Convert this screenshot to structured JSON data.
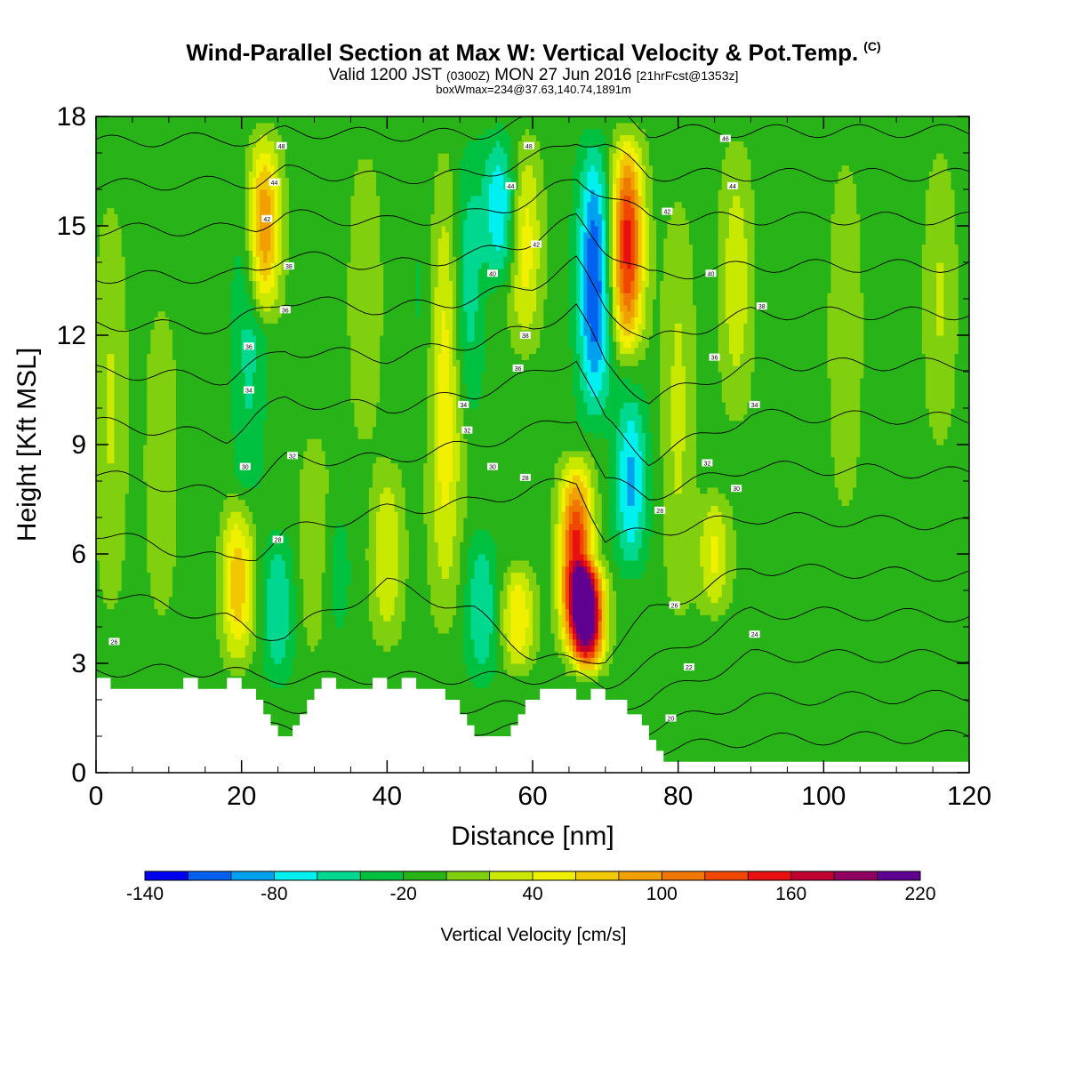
{
  "header": {
    "title": "Wind-Parallel Section at Max W: Vertical Velocity & Pot.Temp.",
    "title_mark": "(C)",
    "valid_prefix": "Valid 1200 JST",
    "valid_utc": "(0300Z)",
    "valid_date": "MON 27 Jun 2016",
    "forecast": "[21hrFcst@1353z]",
    "box_info": "boxWmax=234@37.63,140.74,1891m"
  },
  "chart_data": {
    "type": "heatmap",
    "xlabel": "Distance [nm]",
    "ylabel": "Height [Kft MSL]",
    "xlim": [
      0,
      120
    ],
    "ylim": [
      0,
      18
    ],
    "x_ticks": [
      "0",
      "20",
      "40",
      "60",
      "80",
      "100",
      "120"
    ],
    "y_ticks": [
      "0",
      "3",
      "6",
      "9",
      "12",
      "15",
      "18"
    ],
    "colorbar": {
      "label": "Vertical Velocity [cm/s]",
      "range": [
        -140,
        220
      ],
      "step": 20,
      "tick_labels": [
        "-140",
        "-80",
        "-20",
        "40",
        "100",
        "160",
        "220"
      ],
      "tick_values": [
        -140,
        -80,
        -20,
        40,
        100,
        160,
        220
      ],
      "colors": [
        "#0000f0",
        "#0060f0",
        "#00a0f0",
        "#00f0f0",
        "#00d890",
        "#00c040",
        "#28b418",
        "#80d010",
        "#c8e800",
        "#f0f000",
        "#f0c800",
        "#f0a000",
        "#f07800",
        "#f04800",
        "#e81010",
        "#c00030",
        "#900060",
        "#600090"
      ]
    },
    "w_field": {
      "background": -10,
      "features": [
        {
          "x": 2,
          "y0": 3,
          "y1": 17,
          "value": 22
        },
        {
          "x": 9,
          "y0": 3,
          "y1": 14,
          "value": 18
        },
        {
          "x": 15,
          "y0": 2.5,
          "y1": 18,
          "value": -20
        },
        {
          "x": 19.5,
          "y0": 2.5,
          "y1": 8,
          "value": 75
        },
        {
          "x": 21,
          "y0": 6,
          "y1": 18,
          "value": -45
        },
        {
          "x": 23,
          "y0": 12,
          "y1": 18,
          "value": 105
        },
        {
          "x": 25,
          "y0": 2,
          "y1": 7,
          "value": -60
        },
        {
          "x": 30,
          "y0": 2.5,
          "y1": 10,
          "value": 20
        },
        {
          "x": 33,
          "y0": 3,
          "y1": 8,
          "value": -30
        },
        {
          "x": 37,
          "y0": 8,
          "y1": 18,
          "value": 20
        },
        {
          "x": 40,
          "y0": 3,
          "y1": 9,
          "value": 40
        },
        {
          "x": 45,
          "y0": 8,
          "y1": 18,
          "value": -25
        },
        {
          "x": 48,
          "y0": 3,
          "y1": 18,
          "value": 55
        },
        {
          "x": 51,
          "y0": 9,
          "y1": 18,
          "value": -55
        },
        {
          "x": 53,
          "y0": 2,
          "y1": 7,
          "value": -60
        },
        {
          "x": 55.5,
          "y0": 13,
          "y1": 18,
          "value": -80
        },
        {
          "x": 58,
          "y0": 2.5,
          "y1": 6,
          "value": 60
        },
        {
          "x": 59,
          "y0": 11,
          "y1": 18,
          "value": 50
        },
        {
          "x": 66,
          "y0": 3,
          "y1": 9,
          "value": 150
        },
        {
          "x": 67.5,
          "y0": 2.5,
          "y1": 6,
          "value": 215
        },
        {
          "x": 68.5,
          "y0": 9,
          "y1": 18,
          "value": -120
        },
        {
          "x": 73,
          "y0": 11,
          "y1": 18,
          "value": 150
        },
        {
          "x": 73.5,
          "y0": 5,
          "y1": 11,
          "value": -85
        },
        {
          "x": 80,
          "y0": 3,
          "y1": 17,
          "value": 25
        },
        {
          "x": 85,
          "y0": 4,
          "y1": 8,
          "value": 45
        },
        {
          "x": 88,
          "y0": 9,
          "y1": 18,
          "value": 35
        },
        {
          "x": 96,
          "y0": 3,
          "y1": 14,
          "value": -20
        },
        {
          "x": 103,
          "y0": 6,
          "y1": 18,
          "value": 20
        },
        {
          "x": 110,
          "y0": 3,
          "y1": 12,
          "value": -15
        },
        {
          "x": 116,
          "y0": 8,
          "y1": 18,
          "value": 22
        }
      ]
    },
    "terrain_kft": [
      [
        0,
        2.6
      ],
      [
        2,
        2.6
      ],
      [
        2,
        2.3
      ],
      [
        12,
        2.3
      ],
      [
        12,
        2.6
      ],
      [
        14,
        2.6
      ],
      [
        14,
        2.3
      ],
      [
        18,
        2.3
      ],
      [
        18,
        2.6
      ],
      [
        20,
        2.6
      ],
      [
        20,
        2.3
      ],
      [
        22,
        2.3
      ],
      [
        22,
        2
      ],
      [
        23,
        2
      ],
      [
        23,
        1.6
      ],
      [
        24,
        1.6
      ],
      [
        24,
        1.3
      ],
      [
        25,
        1.3
      ],
      [
        25,
        1
      ],
      [
        27,
        1
      ],
      [
        27,
        1.3
      ],
      [
        28,
        1.3
      ],
      [
        28,
        1.6
      ],
      [
        29,
        1.6
      ],
      [
        29,
        2
      ],
      [
        30,
        2
      ],
      [
        30,
        2.3
      ],
      [
        31,
        2.3
      ],
      [
        31,
        2.6
      ],
      [
        33,
        2.6
      ],
      [
        33,
        2.3
      ],
      [
        38,
        2.3
      ],
      [
        38,
        2.6
      ],
      [
        40,
        2.6
      ],
      [
        40,
        2.3
      ],
      [
        42,
        2.3
      ],
      [
        42,
        2.6
      ],
      [
        44,
        2.6
      ],
      [
        44,
        2.3
      ],
      [
        48,
        2.3
      ],
      [
        48,
        2
      ],
      [
        50,
        2
      ],
      [
        50,
        1.6
      ],
      [
        51,
        1.6
      ],
      [
        51,
        1.3
      ],
      [
        52,
        1.3
      ],
      [
        52,
        1
      ],
      [
        57,
        1
      ],
      [
        57,
        1.3
      ],
      [
        58,
        1.3
      ],
      [
        58,
        1.6
      ],
      [
        59,
        1.6
      ],
      [
        59,
        2
      ],
      [
        61,
        2
      ],
      [
        61,
        2.3
      ],
      [
        66,
        2.3
      ],
      [
        66,
        2
      ],
      [
        68,
        2
      ],
      [
        68,
        2.3
      ],
      [
        70,
        2.3
      ],
      [
        70,
        2
      ],
      [
        73,
        2
      ],
      [
        73,
        1.6
      ],
      [
        75,
        1.6
      ],
      [
        75,
        1.3
      ],
      [
        76,
        1.3
      ],
      [
        76,
        0.9
      ],
      [
        77,
        0.9
      ],
      [
        77,
        0.6
      ],
      [
        78,
        0.6
      ],
      [
        78,
        0.3
      ],
      [
        120,
        0.3
      ]
    ],
    "theta_contour_labels": [
      {
        "text": "48",
        "x": 25.5,
        "y": 17.2
      },
      {
        "text": "44",
        "x": 24.5,
        "y": 16.2
      },
      {
        "text": "42",
        "x": 23.5,
        "y": 15.2
      },
      {
        "text": "38",
        "x": 26.5,
        "y": 13.9
      },
      {
        "text": "36",
        "x": 26,
        "y": 12.7
      },
      {
        "text": "36",
        "x": 21,
        "y": 11.7
      },
      {
        "text": "34",
        "x": 21,
        "y": 10.5
      },
      {
        "text": "30",
        "x": 20.5,
        "y": 8.4
      },
      {
        "text": "32",
        "x": 27,
        "y": 8.7
      },
      {
        "text": "28",
        "x": 25,
        "y": 6.4
      },
      {
        "text": "48",
        "x": 59.5,
        "y": 17.2
      },
      {
        "text": "44",
        "x": 57,
        "y": 16.1
      },
      {
        "text": "42",
        "x": 60.5,
        "y": 14.5
      },
      {
        "text": "40",
        "x": 54.5,
        "y": 13.7
      },
      {
        "text": "38",
        "x": 59,
        "y": 12
      },
      {
        "text": "36",
        "x": 58,
        "y": 11.1
      },
      {
        "text": "34",
        "x": 50.5,
        "y": 10.1
      },
      {
        "text": "32",
        "x": 51,
        "y": 9.4
      },
      {
        "text": "30",
        "x": 54.5,
        "y": 8.4
      },
      {
        "text": "28",
        "x": 59,
        "y": 8.1
      },
      {
        "text": "46",
        "x": 86.5,
        "y": 17.4
      },
      {
        "text": "44",
        "x": 87.5,
        "y": 16.1
      },
      {
        "text": "42",
        "x": 78.5,
        "y": 15.4
      },
      {
        "text": "40",
        "x": 84.5,
        "y": 13.7
      },
      {
        "text": "38",
        "x": 91.5,
        "y": 12.8
      },
      {
        "text": "36",
        "x": 85,
        "y": 11.4
      },
      {
        "text": "34",
        "x": 90.5,
        "y": 10.1
      },
      {
        "text": "32",
        "x": 84,
        "y": 8.5
      },
      {
        "text": "30",
        "x": 88,
        "y": 7.8
      },
      {
        "text": "28",
        "x": 77.5,
        "y": 7.2
      },
      {
        "text": "26",
        "x": 79.5,
        "y": 4.6
      },
      {
        "text": "24",
        "x": 90.5,
        "y": 3.8
      },
      {
        "text": "22",
        "x": 81.5,
        "y": 2.9
      },
      {
        "text": "20",
        "x": 79,
        "y": 1.5
      },
      {
        "text": "26",
        "x": 2.5,
        "y": 3.6
      }
    ],
    "theta_levels": [
      20,
      22,
      24,
      26,
      28,
      30,
      32,
      34,
      36,
      38,
      40,
      42,
      44,
      46,
      48
    ],
    "theta_base_heights": [
      [
        0,
        [
          0.6,
          1.2,
          1.8,
          2.8,
          5.0,
          6.6,
          8.2,
          9.6,
          11.0,
          12.3,
          13.6,
          14.9,
          16.1,
          17.3,
          18.4
        ]
      ],
      [
        18,
        [
          0.6,
          1.2,
          1.8,
          2.8,
          4.2,
          5.8,
          7.6,
          9.2,
          10.8,
          12.2,
          13.6,
          14.9,
          16.2,
          17.4,
          18.6
        ]
      ],
      [
        22,
        [
          0.6,
          1.2,
          1.8,
          2.6,
          3.8,
          6.0,
          8.0,
          9.8,
          11.2,
          12.6,
          13.8,
          15.0,
          16.2,
          17.3,
          18.5
        ]
      ],
      [
        26,
        [
          0.6,
          1.2,
          1.8,
          2.6,
          3.8,
          6.6,
          8.6,
          10.2,
          11.6,
          13.0,
          14.2,
          15.3,
          16.5,
          17.6,
          18.7
        ]
      ],
      [
        40,
        [
          0.6,
          1.2,
          1.8,
          2.6,
          5.2,
          7.2,
          8.6,
          10.0,
          11.4,
          12.7,
          13.9,
          15.1,
          16.3,
          17.5,
          18.7
        ]
      ],
      [
        52,
        [
          0.6,
          1.2,
          1.8,
          2.6,
          4.4,
          7.4,
          9.0,
          10.4,
          11.8,
          13.0,
          14.2,
          15.3,
          16.4,
          17.5,
          18.6
        ]
      ],
      [
        60,
        [
          0.6,
          1.2,
          1.8,
          2.6,
          3.2,
          7.8,
          9.4,
          10.9,
          12.2,
          13.4,
          14.6,
          15.7,
          16.8,
          17.9,
          19.0
        ]
      ],
      [
        66,
        [
          0.6,
          1.2,
          1.8,
          2.6,
          3.0,
          8.0,
          9.8,
          11.4,
          12.8,
          14.0,
          15.2,
          16.3,
          17.4,
          18.5,
          19.6
        ]
      ],
      [
        70,
        [
          0.6,
          1.2,
          1.8,
          2.4,
          3.2,
          6.4,
          8.0,
          9.6,
          11.2,
          12.8,
          14.4,
          15.9,
          17.2,
          18.4,
          19.6
        ]
      ],
      [
        76,
        [
          0.6,
          1.2,
          2.0,
          3.0,
          4.4,
          6.6,
          7.6,
          8.6,
          10.2,
          11.8,
          13.6,
          15.2,
          16.4,
          17.6,
          18.8
        ]
      ],
      [
        90,
        [
          0.9,
          2.0,
          3.2,
          4.4,
          5.6,
          7.0,
          8.4,
          9.8,
          11.2,
          12.6,
          13.9,
          15.2,
          16.4,
          17.6,
          18.8
        ]
      ],
      [
        120,
        [
          1.0,
          2.1,
          3.2,
          4.3,
          5.4,
          6.8,
          8.2,
          9.7,
          11.2,
          12.6,
          13.9,
          15.2,
          16.4,
          17.6,
          18.8
        ]
      ]
    ]
  }
}
